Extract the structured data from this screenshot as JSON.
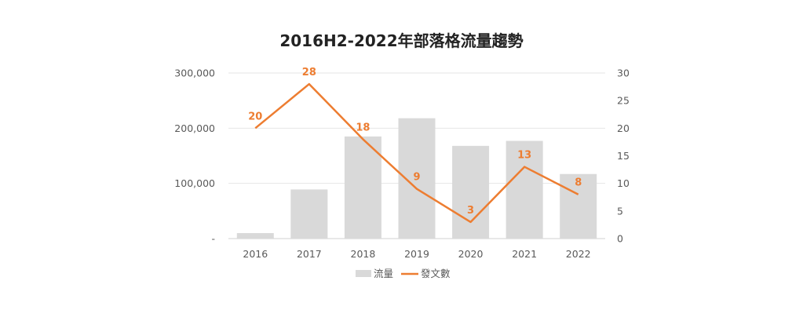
{
  "chart_data": {
    "type": "bar",
    "title": "2016H2-2022年部落格流量趨勢",
    "categories": [
      "2016",
      "2017",
      "2018",
      "2019",
      "2020",
      "2021",
      "2022"
    ],
    "series": [
      {
        "name": "流量",
        "type": "bar",
        "axis": "left",
        "color": "#d9d9d9",
        "values": [
          10000,
          89000,
          185000,
          218000,
          168000,
          177000,
          117000
        ]
      },
      {
        "name": "發文數",
        "type": "line",
        "axis": "right",
        "color": "#ed7d31",
        "values": [
          20,
          28,
          18,
          9,
          3,
          13,
          8
        ]
      }
    ],
    "left_axis": {
      "ylim": [
        0,
        300000
      ],
      "ticks": [
        0,
        100000,
        200000,
        300000
      ],
      "tick_labels": [
        "-",
        "100,000",
        "200,000",
        "300,000"
      ]
    },
    "right_axis": {
      "ylim": [
        0,
        30
      ],
      "ticks": [
        0,
        5,
        10,
        15,
        20,
        25,
        30
      ],
      "tick_labels": [
        "0",
        "5",
        "10",
        "15",
        "20",
        "25",
        "30"
      ]
    },
    "grid": true,
    "legend_position": "bottom"
  }
}
